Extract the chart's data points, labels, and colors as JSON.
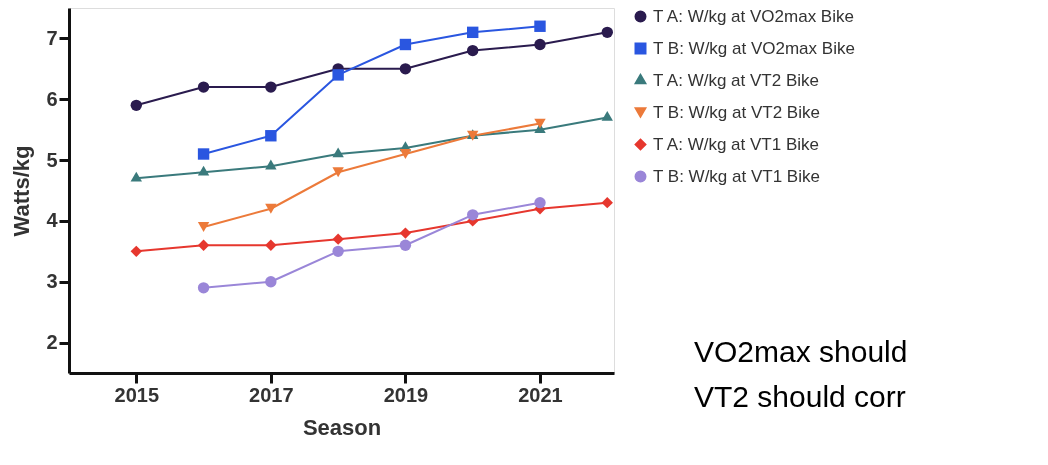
{
  "chart_data": {
    "type": "line",
    "xlabel": "Season",
    "ylabel": "Watts/kg",
    "x": [
      2015,
      2016,
      2017,
      2018,
      2019,
      2020,
      2021,
      2022
    ],
    "xlim": [
      2014,
      2022.1
    ],
    "xticks": [
      2015,
      2017,
      2019,
      2021
    ],
    "ylim": [
      1.5,
      7.5
    ],
    "yticks": [
      2,
      3,
      4,
      5,
      6,
      7
    ],
    "grid": false,
    "legend": "top right",
    "line_style": "solid",
    "series": [
      {
        "name": "T A: W/kg at VO2max Bike",
        "color": "#2a1b4e",
        "marker": "circle",
        "values": [
          5.9,
          6.2,
          6.2,
          6.5,
          6.5,
          6.8,
          6.9,
          7.1
        ]
      },
      {
        "name": "T B: W/kg at VO2max Bike",
        "color": "#2a56e0",
        "marker": "square",
        "values": [
          null,
          5.1,
          5.4,
          6.4,
          6.9,
          7.1,
          7.2,
          null
        ]
      },
      {
        "name": "T A: W/kg at VT2 Bike",
        "color": "#3a7a7c",
        "marker": "triangle",
        "values": [
          4.7,
          4.8,
          4.9,
          5.1,
          5.2,
          5.4,
          5.5,
          5.7
        ]
      },
      {
        "name": "T B: W/kg at VT2 Bike",
        "color": "#ec7a3a",
        "marker": "triangle-down",
        "values": [
          null,
          3.9,
          4.2,
          4.8,
          5.1,
          5.4,
          5.6,
          null
        ]
      },
      {
        "name": "T  A: W/kg at VT1 Bike",
        "color": "#e6372e",
        "marker": "diamond",
        "values": [
          3.5,
          3.6,
          3.6,
          3.7,
          3.8,
          4.0,
          4.2,
          4.3
        ]
      },
      {
        "name": "T B: W/kg at VT1 Bike",
        "color": "#9a86d8",
        "marker": "circle",
        "values": [
          null,
          2.9,
          3.0,
          3.5,
          3.6,
          4.1,
          4.3,
          null
        ]
      }
    ],
    "annotations": [
      "VO2max should",
      "VT2 should corr"
    ]
  }
}
